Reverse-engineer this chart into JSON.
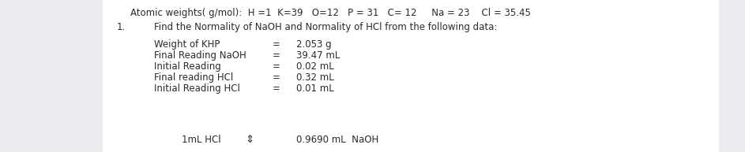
{
  "bg_color": "#eaeaf0",
  "panel_color": "#ffffff",
  "font_family": "DejaVu Sans",
  "line1_prefix": "Atomic weights( g/mol):  ",
  "line1_content": "H =1  K=39   O=12   P = 31   C= 12     Na = 23    Cl = 35.45",
  "number": "1.",
  "question": "Find the Normality of NaOH and Normality of HCl from the following data:",
  "labels": [
    "Weight of KHP",
    "Final Reading NaOH",
    "Initial Reading",
    "Final reading HCl",
    "Initial Reading HCl"
  ],
  "values": [
    "2.053 g",
    "39.47 mL",
    "0.02 mL",
    "0.32 mL",
    "0.01 mL"
  ],
  "footer_left": "1mL HCl",
  "footer_symbol": "⇕",
  "footer_right": "0.9690 mL  NaOH",
  "text_color": "#2a2a2a",
  "fontsize": 8.5
}
